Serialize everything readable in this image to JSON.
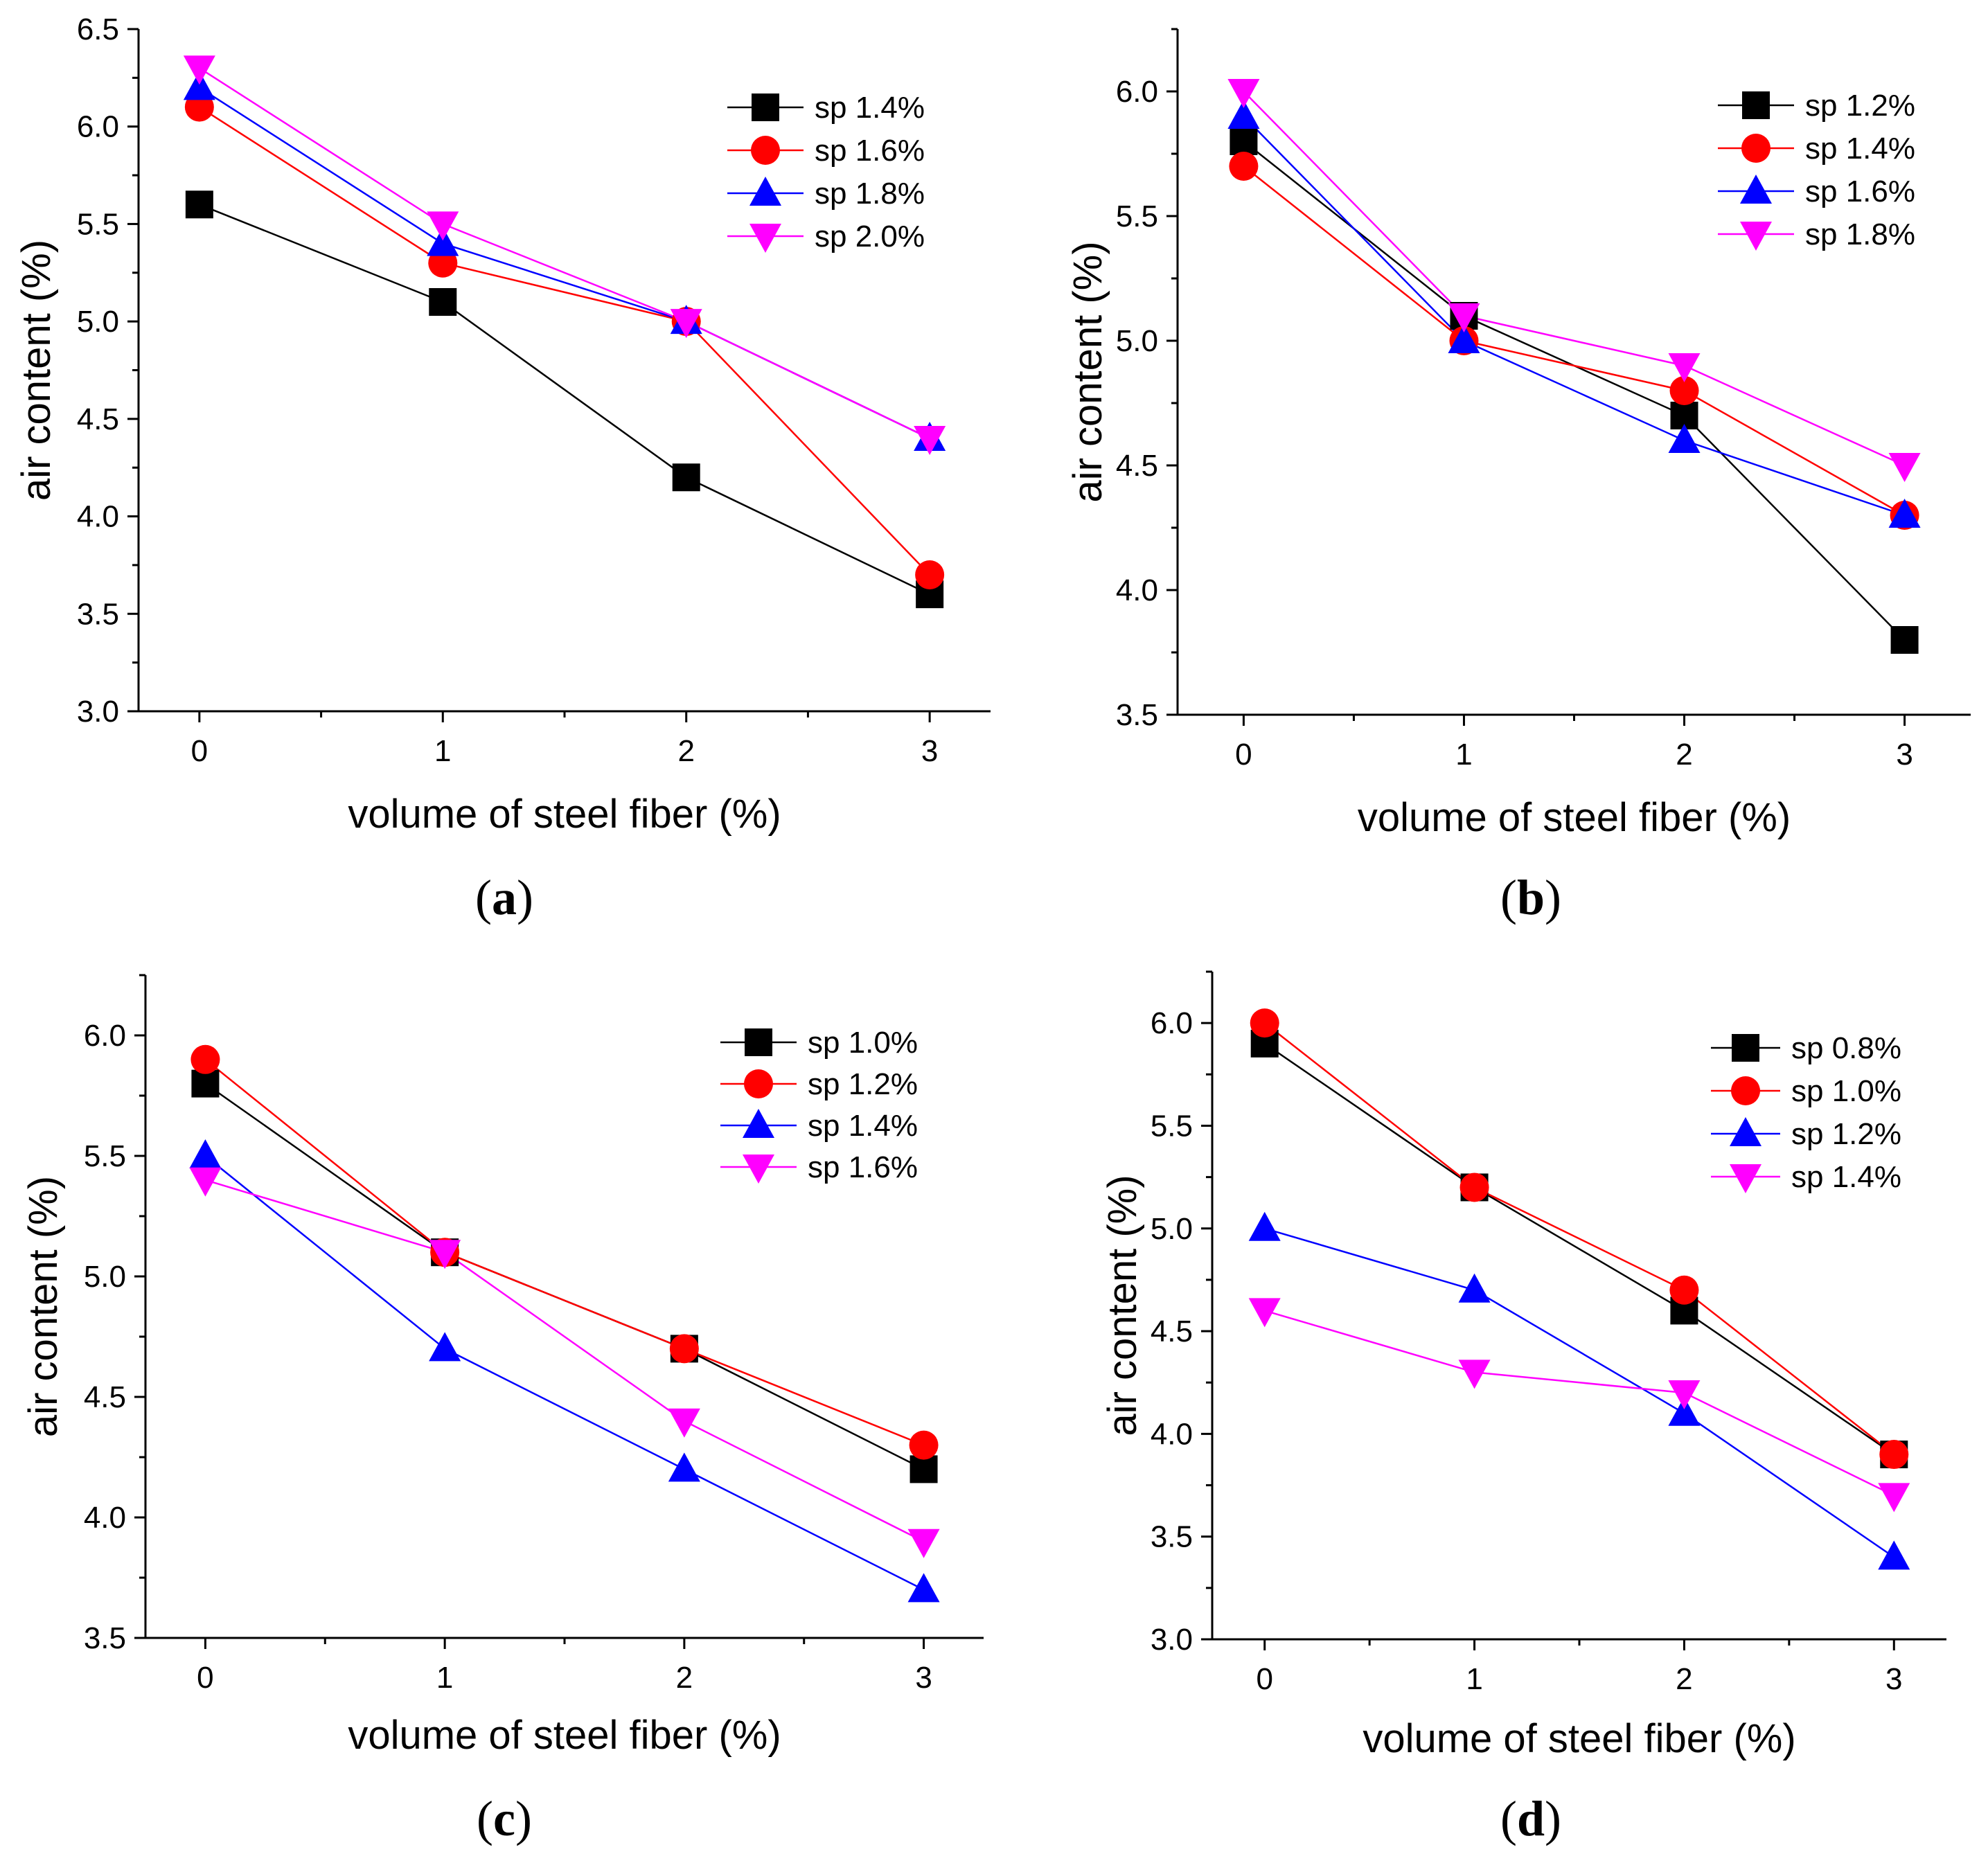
{
  "chart_data": [
    {
      "type": "line",
      "panel_label": "a",
      "xlabel": "volume of steel fiber (%)",
      "ylabel": "air content (%)",
      "x": [
        0,
        1,
        2,
        3
      ],
      "xlim": [
        -0.25,
        3.25
      ],
      "ylim": [
        3.0,
        6.5
      ],
      "yticks": [
        "3.0",
        "3.5",
        "4.0",
        "4.5",
        "5.0",
        "5.5",
        "6.0",
        "6.5"
      ],
      "xticks": [
        "0",
        "1",
        "2",
        "3"
      ],
      "legend_position": "top-right",
      "series": [
        {
          "name": "sp 1.4%",
          "color": "#000000",
          "marker": "square",
          "values": [
            5.6,
            5.1,
            4.2,
            3.6
          ]
        },
        {
          "name": "sp 1.6%",
          "color": "#ff0000",
          "marker": "circle",
          "values": [
            6.1,
            5.3,
            5.0,
            3.7
          ]
        },
        {
          "name": "sp 1.8%",
          "color": "#0000ff",
          "marker": "triangle-up",
          "values": [
            6.2,
            5.4,
            5.0,
            4.4
          ]
        },
        {
          "name": "sp 2.0%",
          "color": "#ff00ff",
          "marker": "triangle-down",
          "values": [
            6.3,
            5.5,
            5.0,
            4.4
          ]
        }
      ]
    },
    {
      "type": "line",
      "panel_label": "b",
      "xlabel": "volume of steel fiber (%)",
      "ylabel": "air content (%)",
      "x": [
        0,
        1,
        2,
        3
      ],
      "xlim": [
        -0.3,
        3.3
      ],
      "ylim": [
        3.5,
        6.25
      ],
      "yticks": [
        "3.5",
        "4.0",
        "4.5",
        "5.0",
        "5.5",
        "6.0"
      ],
      "xticks": [
        "0",
        "1",
        "2",
        "3"
      ],
      "legend_position": "top-right",
      "series": [
        {
          "name": "sp 1.2%",
          "color": "#000000",
          "marker": "square",
          "values": [
            5.8,
            5.1,
            4.7,
            3.8
          ]
        },
        {
          "name": "sp 1.4%",
          "color": "#ff0000",
          "marker": "circle",
          "values": [
            5.7,
            5.0,
            4.8,
            4.3
          ]
        },
        {
          "name": "sp 1.6%",
          "color": "#0000ff",
          "marker": "triangle-up",
          "values": [
            5.9,
            5.0,
            4.6,
            4.3
          ]
        },
        {
          "name": "sp 1.8%",
          "color": "#ff00ff",
          "marker": "triangle-down",
          "values": [
            6.0,
            5.1,
            4.9,
            4.5
          ]
        }
      ]
    },
    {
      "type": "line",
      "panel_label": "c",
      "xlabel": "volume of steel fiber (%)",
      "ylabel": "air content (%)",
      "x": [
        0,
        1,
        2,
        3
      ],
      "xlim": [
        -0.25,
        3.25
      ],
      "ylim": [
        3.5,
        6.25
      ],
      "yticks": [
        "3.5",
        "4.0",
        "4.5",
        "5.0",
        "5.5",
        "6.0"
      ],
      "xticks": [
        "0",
        "1",
        "2",
        "3"
      ],
      "legend_position": "top-right",
      "series": [
        {
          "name": "sp 1.0%",
          "color": "#000000",
          "marker": "square",
          "values": [
            5.8,
            5.1,
            4.7,
            4.2
          ]
        },
        {
          "name": "sp 1.2%",
          "color": "#ff0000",
          "marker": "circle",
          "values": [
            5.9,
            5.1,
            4.7,
            4.3
          ]
        },
        {
          "name": "sp 1.4%",
          "color": "#0000ff",
          "marker": "triangle-up",
          "values": [
            5.5,
            4.7,
            4.2,
            3.7
          ]
        },
        {
          "name": "sp 1.6%",
          "color": "#ff00ff",
          "marker": "triangle-down",
          "values": [
            5.4,
            5.1,
            4.4,
            3.9
          ]
        }
      ]
    },
    {
      "type": "line",
      "panel_label": "d",
      "xlabel": "volume of steel fiber (%)",
      "ylabel": "air content (%)",
      "x": [
        0,
        1,
        2,
        3
      ],
      "xlim": [
        -0.25,
        3.25
      ],
      "ylim": [
        3.0,
        6.25
      ],
      "yticks": [
        "3.0",
        "3.5",
        "4.0",
        "4.5",
        "5.0",
        "5.5",
        "6.0"
      ],
      "xticks": [
        "0",
        "1",
        "2",
        "3"
      ],
      "legend_position": "top-right",
      "series": [
        {
          "name": "sp 0.8%",
          "color": "#000000",
          "marker": "square",
          "values": [
            5.9,
            5.2,
            4.6,
            3.9
          ]
        },
        {
          "name": "sp 1.0%",
          "color": "#ff0000",
          "marker": "circle",
          "values": [
            6.0,
            5.2,
            4.7,
            3.9
          ]
        },
        {
          "name": "sp 1.2%",
          "color": "#0000ff",
          "marker": "triangle-up",
          "values": [
            5.0,
            4.7,
            4.1,
            3.4
          ]
        },
        {
          "name": "sp 1.4%",
          "color": "#ff00ff",
          "marker": "triangle-down",
          "values": [
            4.6,
            4.3,
            4.2,
            3.7
          ]
        }
      ]
    }
  ]
}
